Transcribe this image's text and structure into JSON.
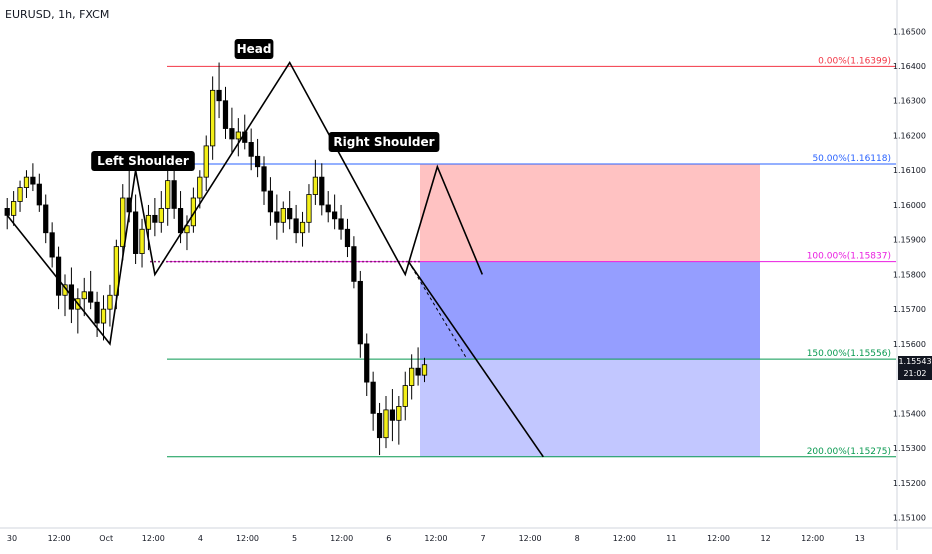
{
  "symbol_title": "EURUSD, 1h, FXCM",
  "chart_data": {
    "type": "candlestick",
    "symbol": "EURUSD",
    "interval": "1h",
    "source": "FXCM",
    "ylim": [
      1.1507,
      1.1659
    ],
    "y_tick_labels": [
      "1.16500",
      "1.16400",
      "1.16300",
      "1.16200",
      "1.16100",
      "1.16000",
      "1.15900",
      "1.15800",
      "1.15700",
      "1.15600",
      "1.15400",
      "1.15300",
      "1.15200",
      "1.15100"
    ],
    "x_tick_labels": [
      "30",
      "12:00",
      "Oct",
      "12:00",
      "4",
      "12:00",
      "5",
      "12:00",
      "6",
      "12:00",
      "7",
      "12:00",
      "8",
      "12:00",
      "11",
      "12:00",
      "12",
      "12:00",
      "13"
    ],
    "last_price": "1.15543",
    "countdown": "21:02",
    "fib_levels": [
      {
        "label": "0.00%(1.16399)",
        "price": 1.16399,
        "color": "#f23645"
      },
      {
        "label": "50.00%(1.16118)",
        "price": 1.16118,
        "color": "#2962ff"
      },
      {
        "label": "100.00%(1.15837)",
        "price": 1.15837,
        "color": "#e91ee0"
      },
      {
        "label": "150.00%(1.15556)",
        "price": 1.15556,
        "color": "#089950"
      },
      {
        "label": "200.00%(1.15275)",
        "price": 1.15275,
        "color": "#089950"
      }
    ],
    "annotations": [
      "Left Shoulder",
      "Head",
      "Right Shoulder"
    ],
    "pattern_points": [
      {
        "bar": 0,
        "price": 1.1597
      },
      {
        "bar": 16,
        "price": 1.156
      },
      {
        "bar": 20,
        "price": 1.161
      },
      {
        "bar": 23,
        "price": 1.158
      },
      {
        "bar": 44,
        "price": 1.1641
      },
      {
        "bar": 62,
        "price": 1.158
      },
      {
        "bar": 67,
        "price": 1.1611
      },
      {
        "bar": 74,
        "price": 1.158
      }
    ],
    "neckline_price": 1.15837,
    "target_projection": {
      "start_bar": 63,
      "start_price": 1.15837,
      "end_bar": 84,
      "end_price": 1.15275
    },
    "ohlc": [
      [
        1.1599,
        1.1602,
        1.1593,
        1.1597
      ],
      [
        1.1597,
        1.1604,
        1.1594,
        1.1601
      ],
      [
        1.1601,
        1.1607,
        1.1598,
        1.1605
      ],
      [
        1.1605,
        1.161,
        1.1602,
        1.1608
      ],
      [
        1.1608,
        1.1612,
        1.1604,
        1.1606
      ],
      [
        1.1606,
        1.1609,
        1.1598,
        1.16
      ],
      [
        1.16,
        1.1603,
        1.1589,
        1.1592
      ],
      [
        1.1592,
        1.1595,
        1.1582,
        1.1585
      ],
      [
        1.1585,
        1.1588,
        1.157,
        1.1574
      ],
      [
        1.1574,
        1.158,
        1.1568,
        1.1577
      ],
      [
        1.1577,
        1.1582,
        1.1566,
        1.157
      ],
      [
        1.157,
        1.1576,
        1.1563,
        1.1573
      ],
      [
        1.1573,
        1.1579,
        1.1568,
        1.1575
      ],
      [
        1.1575,
        1.1581,
        1.157,
        1.1572
      ],
      [
        1.1572,
        1.1575,
        1.1562,
        1.1566
      ],
      [
        1.1566,
        1.1574,
        1.1561,
        1.157
      ],
      [
        1.157,
        1.1577,
        1.1565,
        1.1574
      ],
      [
        1.1574,
        1.159,
        1.157,
        1.1588
      ],
      [
        1.1588,
        1.1606,
        1.1584,
        1.1602
      ],
      [
        1.1602,
        1.1612,
        1.1595,
        1.1598
      ],
      [
        1.1598,
        1.1603,
        1.1583,
        1.1586
      ],
      [
        1.1586,
        1.1596,
        1.1582,
        1.1593
      ],
      [
        1.1593,
        1.16,
        1.1587,
        1.1597
      ],
      [
        1.1597,
        1.1602,
        1.1591,
        1.1595
      ],
      [
        1.1595,
        1.1604,
        1.1592,
        1.1599
      ],
      [
        1.1599,
        1.161,
        1.1594,
        1.1607
      ],
      [
        1.1607,
        1.1611,
        1.1596,
        1.1599
      ],
      [
        1.1599,
        1.1604,
        1.1589,
        1.1592
      ],
      [
        1.1592,
        1.1597,
        1.1587,
        1.1594
      ],
      [
        1.1594,
        1.1605,
        1.1592,
        1.1602
      ],
      [
        1.1602,
        1.161,
        1.1599,
        1.1608
      ],
      [
        1.1608,
        1.162,
        1.1604,
        1.1617
      ],
      [
        1.1617,
        1.1637,
        1.1613,
        1.1633
      ],
      [
        1.1633,
        1.1641,
        1.1625,
        1.163
      ],
      [
        1.163,
        1.1634,
        1.1619,
        1.1622
      ],
      [
        1.1622,
        1.1628,
        1.1615,
        1.1619
      ],
      [
        1.1619,
        1.1625,
        1.1614,
        1.1621
      ],
      [
        1.1621,
        1.1626,
        1.1616,
        1.1618
      ],
      [
        1.1618,
        1.1622,
        1.161,
        1.1614
      ],
      [
        1.1614,
        1.1619,
        1.1608,
        1.1611
      ],
      [
        1.1611,
        1.1614,
        1.16,
        1.1604
      ],
      [
        1.1604,
        1.1608,
        1.1594,
        1.1598
      ],
      [
        1.1598,
        1.1603,
        1.159,
        1.1595
      ],
      [
        1.1595,
        1.1601,
        1.1592,
        1.1599
      ],
      [
        1.1599,
        1.1604,
        1.1593,
        1.1596
      ],
      [
        1.1596,
        1.16,
        1.1589,
        1.1592
      ],
      [
        1.1592,
        1.1598,
        1.1588,
        1.1595
      ],
      [
        1.1595,
        1.1606,
        1.1592,
        1.1603
      ],
      [
        1.1603,
        1.1613,
        1.16,
        1.1608
      ],
      [
        1.1608,
        1.1612,
        1.1597,
        1.16
      ],
      [
        1.16,
        1.1604,
        1.1595,
        1.1598
      ],
      [
        1.1598,
        1.1603,
        1.1593,
        1.1596
      ],
      [
        1.1596,
        1.16,
        1.159,
        1.1593
      ],
      [
        1.1593,
        1.1596,
        1.1585,
        1.1588
      ],
      [
        1.1588,
        1.1591,
        1.1576,
        1.1578
      ],
      [
        1.1578,
        1.1581,
        1.1556,
        1.156
      ],
      [
        1.156,
        1.1563,
        1.1545,
        1.1549
      ],
      [
        1.1549,
        1.1552,
        1.1535,
        1.154
      ],
      [
        1.154,
        1.1543,
        1.1528,
        1.1533
      ],
      [
        1.1533,
        1.1545,
        1.153,
        1.1541
      ],
      [
        1.1541,
        1.1547,
        1.1532,
        1.1538
      ],
      [
        1.1538,
        1.1545,
        1.1531,
        1.1542
      ],
      [
        1.1542,
        1.1552,
        1.1538,
        1.1548
      ],
      [
        1.1548,
        1.1557,
        1.1544,
        1.1553
      ],
      [
        1.1553,
        1.1559,
        1.1548,
        1.1551
      ],
      [
        1.1551,
        1.1556,
        1.1549,
        1.1554
      ]
    ]
  }
}
